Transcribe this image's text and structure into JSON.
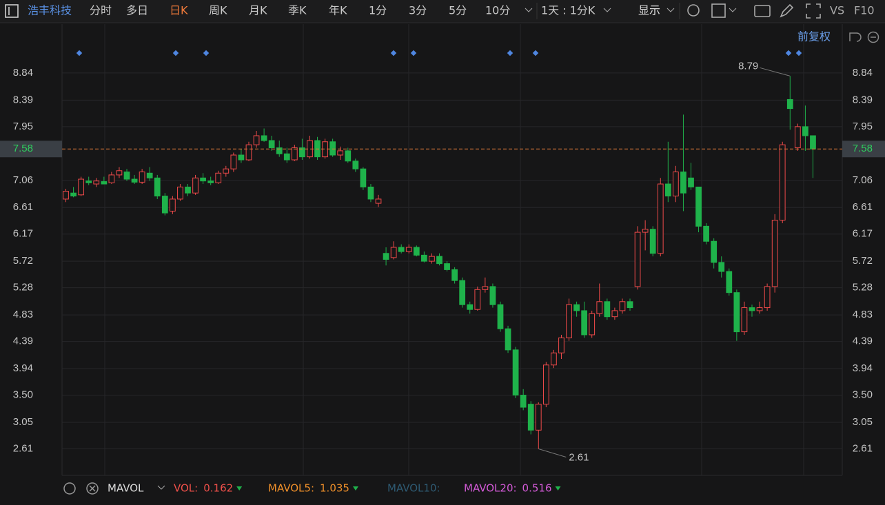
{
  "toolbar": {
    "stock": "浩丰科技",
    "tabs": [
      "分时",
      "多日",
      "日K",
      "周K",
      "月K",
      "季K",
      "年K",
      "1分",
      "3分",
      "5分",
      "10分"
    ],
    "period": "1天 : 1分K",
    "display": "显示",
    "vs": "VS",
    "f10": "F10",
    "adjust": "前复权"
  },
  "chart_data": {
    "type": "candlestick",
    "up_color": "#f04a4a",
    "down_color": "#1fb24b",
    "grid": true,
    "ylim": [
      2.17,
      9.65
    ],
    "yticks": [
      8.84,
      8.39,
      7.95,
      7.06,
      6.61,
      6.17,
      5.72,
      5.28,
      4.83,
      4.39,
      3.94,
      {
        "value": 3.5,
        "label": "3.50"
      },
      3.05,
      2.61
    ],
    "last_price": 7.58,
    "high_marker": 8.79,
    "low_marker": 2.61,
    "open": [
      6.75,
      6.85,
      6.82,
      7.05,
      7.0,
      7.04,
      7.02,
      7.15,
      7.2,
      7.08,
      7.03,
      7.18,
      7.1,
      6.8,
      6.55,
      6.75,
      6.95,
      6.85,
      7.1,
      7.05,
      7.02,
      7.18,
      7.25,
      7.48,
      7.4,
      7.65,
      7.8,
      7.72,
      7.6,
      7.5,
      7.4,
      7.6,
      7.45,
      7.72,
      7.45,
      7.7,
      7.48,
      7.55,
      7.38,
      7.25,
      6.95,
      6.68,
      5.85,
      5.78,
      5.95,
      5.88,
      5.95,
      5.82,
      5.72,
      5.8,
      5.68,
      5.58,
      5.4,
      5.0,
      4.92,
      5.25,
      5.3,
      5.0,
      4.6,
      4.25,
      3.5,
      3.35,
      2.92,
      3.35,
      4.0,
      4.2,
      4.45,
      5.0,
      4.9,
      4.5,
      4.85,
      5.05,
      4.8,
      4.9,
      5.05,
      5.3,
      6.2,
      6.25,
      5.85,
      7.0,
      6.8,
      7.2,
      7.1,
      6.95,
      6.3,
      6.05,
      5.7,
      5.55,
      5.2,
      4.55,
      4.95,
      4.9,
      4.95,
      5.3,
      6.4,
      8.4,
      7.6,
      7.95,
      7.8
    ],
    "high": [
      6.92,
      6.95,
      7.12,
      7.12,
      7.1,
      7.12,
      7.2,
      7.28,
      7.25,
      7.15,
      7.25,
      7.28,
      7.15,
      6.85,
      6.8,
      7.0,
      7.0,
      7.15,
      7.18,
      7.12,
      7.22,
      7.3,
      7.52,
      7.58,
      7.7,
      7.88,
      7.92,
      7.8,
      7.72,
      7.6,
      7.65,
      7.75,
      7.8,
      7.78,
      7.75,
      7.75,
      7.62,
      7.6,
      7.42,
      7.28,
      7.0,
      6.82,
      5.95,
      6.05,
      6.0,
      6.0,
      5.98,
      5.88,
      5.85,
      5.85,
      5.72,
      5.62,
      5.45,
      5.05,
      5.3,
      5.45,
      5.35,
      5.05,
      4.65,
      4.3,
      3.6,
      3.4,
      3.38,
      4.05,
      4.25,
      4.5,
      5.1,
      5.05,
      5.05,
      4.9,
      5.35,
      5.1,
      4.95,
      5.1,
      5.1,
      6.3,
      6.4,
      6.3,
      7.1,
      7.7,
      7.3,
      8.15,
      7.35,
      6.95,
      6.35,
      6.1,
      5.8,
      5.6,
      5.25,
      5.05,
      5.0,
      5.05,
      5.35,
      6.5,
      7.7,
      8.79,
      8.0,
      8.3,
      7.8
    ],
    "low": [
      6.7,
      6.78,
      6.8,
      6.98,
      6.95,
      7.0,
      7.0,
      7.1,
      7.05,
      7.0,
      7.0,
      7.05,
      6.75,
      6.48,
      6.5,
      6.72,
      6.8,
      6.82,
      7.0,
      6.98,
      7.0,
      7.12,
      7.2,
      7.35,
      7.38,
      7.6,
      7.7,
      7.55,
      7.45,
      7.35,
      7.38,
      7.4,
      7.42,
      7.4,
      7.42,
      7.45,
      7.4,
      7.35,
      7.2,
      6.9,
      6.7,
      6.62,
      5.65,
      5.75,
      5.85,
      5.85,
      5.8,
      5.7,
      5.68,
      5.65,
      5.55,
      5.35,
      4.95,
      4.85,
      4.9,
      5.2,
      4.95,
      4.55,
      4.2,
      3.45,
      3.25,
      2.85,
      2.61,
      3.3,
      3.95,
      4.1,
      4.4,
      4.8,
      4.45,
      4.45,
      4.8,
      4.75,
      4.75,
      4.85,
      4.9,
      5.25,
      5.9,
      5.8,
      5.8,
      6.7,
      6.7,
      6.55,
      6.9,
      6.2,
      6.0,
      5.6,
      5.45,
      5.15,
      4.4,
      4.5,
      4.8,
      4.85,
      4.9,
      5.2,
      6.35,
      7.9,
      7.55,
      7.55,
      7.1
    ],
    "close": [
      6.88,
      6.8,
      7.08,
      7.02,
      7.05,
      7.0,
      7.15,
      7.22,
      7.08,
      7.03,
      7.2,
      7.1,
      6.8,
      6.52,
      6.75,
      6.95,
      6.85,
      7.1,
      7.05,
      7.02,
      7.18,
      7.25,
      7.48,
      7.4,
      7.65,
      7.8,
      7.72,
      7.6,
      7.5,
      7.4,
      7.6,
      7.45,
      7.72,
      7.45,
      7.7,
      7.48,
      7.55,
      7.38,
      7.25,
      6.95,
      6.75,
      6.75,
      5.75,
      5.95,
      5.88,
      5.95,
      5.82,
      5.72,
      5.8,
      5.68,
      5.58,
      5.4,
      5.0,
      4.92,
      5.25,
      5.3,
      5.0,
      4.6,
      4.25,
      3.5,
      3.3,
      2.92,
      3.35,
      4.0,
      4.2,
      4.45,
      5.0,
      4.9,
      4.5,
      4.85,
      5.05,
      4.8,
      4.9,
      5.05,
      4.95,
      6.2,
      6.25,
      5.85,
      7.0,
      6.8,
      7.2,
      6.85,
      6.95,
      6.3,
      6.05,
      5.7,
      5.55,
      5.2,
      4.55,
      4.95,
      4.9,
      4.95,
      5.3,
      6.4,
      7.65,
      8.25,
      7.95,
      7.8,
      7.58
    ]
  },
  "indicator": {
    "name": "MAVOL",
    "items": [
      {
        "label": "VOL:",
        "value": 0.162,
        "color": "#f0504a"
      },
      {
        "label": "MAVOL5:",
        "value": 1.035,
        "color": "#f0902a"
      },
      {
        "label": "MAVOL10:",
        "color": "#2e5a72"
      },
      {
        "label": "MAVOL20:",
        "value": 0.516,
        "color": "#d45ad8"
      }
    ]
  }
}
